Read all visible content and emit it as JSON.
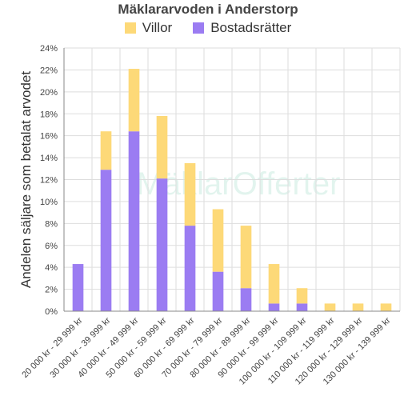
{
  "chart_data": {
    "type": "bar",
    "stacked": true,
    "title": "Mäklararvoden i Anderstorp",
    "ylabel": "Andelen säljare som betalat arvodet",
    "xlabel": "",
    "watermark": "MäklarOfferter",
    "ylim": [
      0,
      24
    ],
    "y_tick_step": 2,
    "y_tick_suffix": "%",
    "grid": true,
    "legend_position": "top",
    "categories": [
      "20 000 kr - 29 999 kr",
      "30 000 kr - 39 999 kr",
      "40 000 kr - 49 999 kr",
      "50 000 kr - 59 999 kr",
      "60 000 kr - 69 999 kr",
      "70 000 kr - 79 999 kr",
      "80 000 kr - 89 999 kr",
      "90 000 kr - 99 999 kr",
      "100 000 kr - 109 999 kr",
      "110 000 kr - 119 999 kr",
      "120 000 kr - 129 999 kr",
      "130 000 kr - 139 999 kr"
    ],
    "series": [
      {
        "name": "Bostadsrätter",
        "color": "#9b7cf2",
        "values": [
          4.3,
          12.9,
          16.4,
          12.1,
          7.8,
          3.6,
          2.1,
          0.7,
          0.7,
          0,
          0,
          0
        ]
      },
      {
        "name": "Villor",
        "color": "#fdd978",
        "values": [
          0,
          3.5,
          5.7,
          5.7,
          5.7,
          5.7,
          5.7,
          3.6,
          1.4,
          0.7,
          0.7,
          0.7
        ]
      }
    ],
    "legend": [
      "Villor",
      "Bostadsrätter"
    ]
  }
}
